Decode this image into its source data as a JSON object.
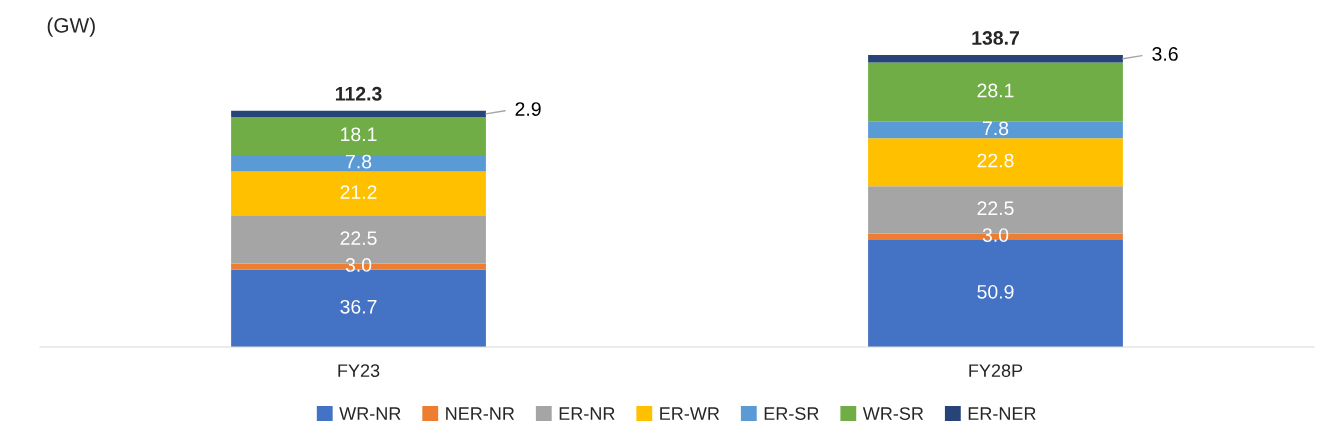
{
  "chart_data": {
    "type": "bar",
    "stacked": true,
    "ylabel": "(GW)",
    "categories": [
      "FY23",
      "FY28P"
    ],
    "legend": "bottom",
    "grid": false,
    "series": [
      {
        "name": "WR-NR",
        "color": "#4472c4",
        "values": [
          36.7,
          50.9
        ],
        "value_labels": [
          "36.7",
          "50.9"
        ]
      },
      {
        "name": "NER-NR",
        "color": "#ed7d31",
        "values": [
          3.0,
          3.0
        ],
        "value_labels": [
          "3.0",
          "3.0"
        ]
      },
      {
        "name": "ER-NR",
        "color": "#a5a5a5",
        "values": [
          22.5,
          22.5
        ],
        "value_labels": [
          "22.5",
          "22.5"
        ]
      },
      {
        "name": "ER-WR",
        "color": "#ffc000",
        "values": [
          21.2,
          22.8
        ],
        "value_labels": [
          "21.2",
          "22.8"
        ]
      },
      {
        "name": "ER-SR",
        "color": "#5b9bd5",
        "values": [
          7.8,
          7.8
        ],
        "value_labels": [
          "7.8",
          "7.8"
        ]
      },
      {
        "name": "WR-SR",
        "color": "#70ad47",
        "values": [
          18.1,
          28.1
        ],
        "value_labels": [
          "18.1",
          "28.1"
        ]
      },
      {
        "name": "ER-NER",
        "color": "#264478",
        "values": [
          2.9,
          3.6
        ],
        "value_labels": [
          "2.9",
          "3.6"
        ]
      }
    ],
    "totals": [
      "112.3",
      "138.7"
    ]
  }
}
